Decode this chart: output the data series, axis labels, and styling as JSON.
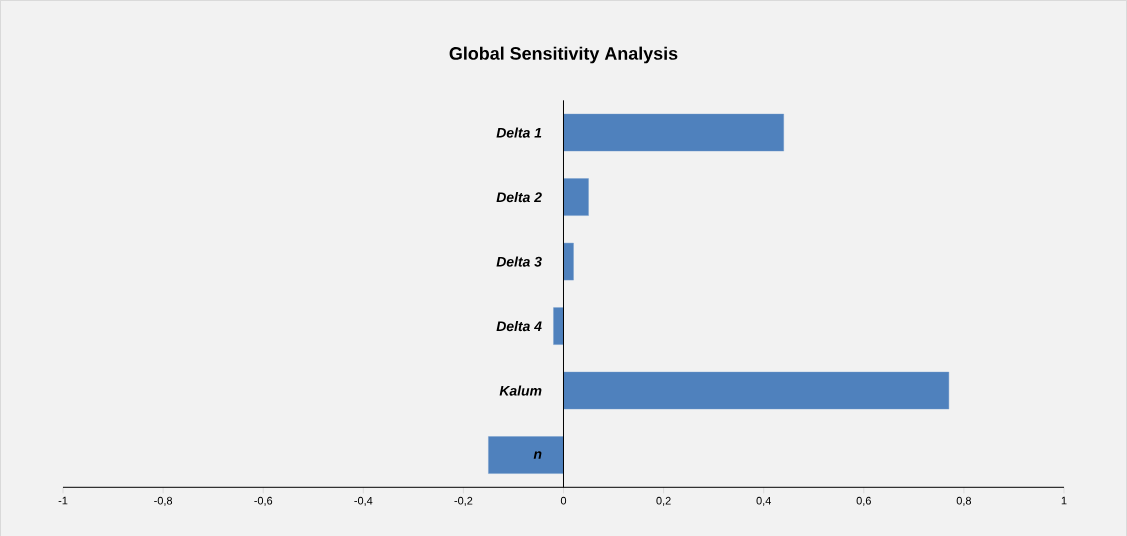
{
  "chart_data": {
    "type": "bar",
    "orientation": "horizontal",
    "title": "Global Sensitivity Analysis",
    "categories": [
      "Delta 1",
      "Delta 2",
      "Delta 3",
      "Delta 4",
      "Kalum",
      "n"
    ],
    "values": [
      0.44,
      0.05,
      0.02,
      -0.02,
      0.77,
      -0.15
    ],
    "color": "#4f81bd",
    "xlim": [
      -1,
      1
    ],
    "xticks": [
      -1,
      {
        "value": -0.8,
        "label": "-0,8"
      },
      {
        "value": -0.6,
        "label": "-0,6"
      },
      {
        "value": -0.4,
        "label": "-0,4"
      },
      {
        "value": -0.2,
        "label": "-0,2"
      },
      0,
      {
        "value": 0.2,
        "label": "0,2"
      },
      {
        "value": 0.4,
        "label": "0,4"
      },
      {
        "value": 0.6,
        "label": "0,6"
      },
      {
        "value": 0.8,
        "label": "0,8"
      },
      1
    ],
    "grid": false
  }
}
